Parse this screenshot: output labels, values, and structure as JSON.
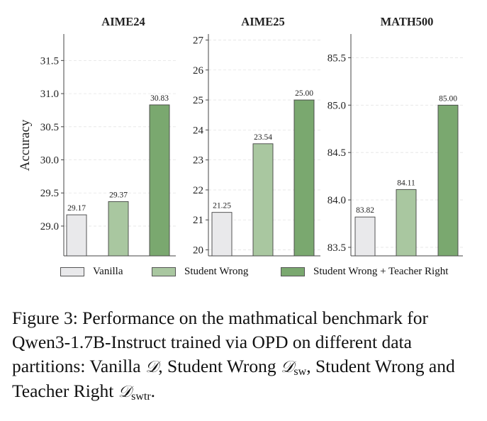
{
  "chart_data": [
    {
      "type": "bar",
      "title": "AIME24",
      "ylabel": "Accuracy",
      "categories": [
        "Vanilla",
        "Student Wrong",
        "Student Wrong + Teacher Right"
      ],
      "values": [
        29.17,
        29.37,
        30.83
      ],
      "value_labels": [
        "29.17",
        "29.37",
        "30.83"
      ],
      "ylim": [
        28.55,
        31.9
      ],
      "yticks": [
        29.0,
        29.5,
        30.0,
        30.5,
        31.0,
        31.5
      ],
      "ytick_labels": [
        "29.0",
        "29.5",
        "30.0",
        "30.5",
        "31.0",
        "31.5"
      ]
    },
    {
      "type": "bar",
      "title": "AIME25",
      "categories": [
        "Vanilla",
        "Student Wrong",
        "Student Wrong + Teacher Right"
      ],
      "values": [
        21.25,
        23.54,
        25.0
      ],
      "value_labels": [
        "21.25",
        "23.54",
        "25.00"
      ],
      "ylim": [
        19.8,
        27.2
      ],
      "yticks": [
        20,
        21,
        22,
        23,
        24,
        25,
        26,
        27
      ],
      "ytick_labels": [
        "20",
        "21",
        "22",
        "23",
        "24",
        "25",
        "26",
        "27"
      ]
    },
    {
      "type": "bar",
      "title": "MATH500",
      "categories": [
        "Vanilla",
        "Student Wrong",
        "Student Wrong + Teacher Right"
      ],
      "values": [
        83.82,
        84.11,
        85.0
      ],
      "value_labels": [
        "83.82",
        "84.11",
        "85.00"
      ],
      "ylim": [
        83.41,
        85.75
      ],
      "yticks": [
        83.5,
        84.0,
        84.5,
        85.0,
        85.5
      ],
      "ytick_labels": [
        "83.5",
        "84.0",
        "84.5",
        "85.0",
        "85.5"
      ]
    }
  ],
  "series_colors": [
    "#e9e9eb",
    "#a9c7a0",
    "#7aa86f"
  ],
  "grid": "horizontal, dashed, light",
  "legend": {
    "placement": "bottom",
    "items": [
      "Vanilla",
      "Student Wrong",
      "Student Wrong + Teacher Right"
    ]
  },
  "caption": {
    "prefix": "Figure 3: Performance on the mathmatical benchmark for Qwen3-1.7B-Instruct trained via OPD on different data partitions: Vanilla ",
    "d_symbol": "𝒟",
    "mid1": ", Student Wrong ",
    "sub_sw": "sw",
    "mid2": ", Student Wrong and Teacher Right ",
    "sub_swtr": "swtr",
    "suffix": "."
  }
}
